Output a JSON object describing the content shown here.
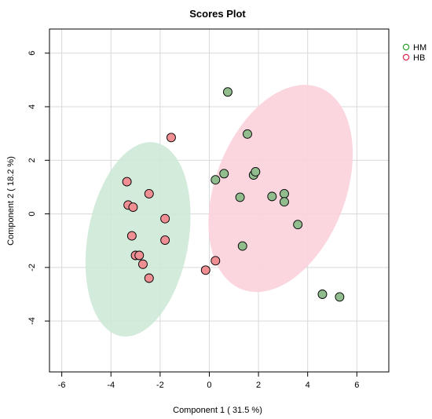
{
  "chart_data": {
    "type": "scatter",
    "title": "Scores Plot",
    "xlabel": "Component 1 ( 31.5 %)",
    "ylabel": "Component 2 ( 18.2 %)",
    "xlim": [
      -6.5,
      7.3
    ],
    "ylim": [
      -5.9,
      6.9
    ],
    "xticks": [
      -6,
      -4,
      -2,
      0,
      2,
      4,
      6
    ],
    "yticks": [
      -4,
      -2,
      0,
      2,
      4,
      6
    ],
    "grid": true,
    "legend_position": "top-right",
    "series": [
      {
        "name": "HM",
        "color": "#2ca02c",
        "point_fill": "#90bc8e",
        "ellipse_fill": "#cde9d6",
        "ellipse": {
          "center": [
            -2.9,
            -0.95
          ],
          "semi_axes": [
            4.0,
            2.05
          ],
          "angle_deg": 80
        },
        "points": [
          [
            0.75,
            4.55
          ],
          [
            1.55,
            2.98
          ],
          [
            0.6,
            1.5
          ],
          [
            0.25,
            1.27
          ],
          [
            1.8,
            1.45
          ],
          [
            1.88,
            1.57
          ],
          [
            1.25,
            0.62
          ],
          [
            2.55,
            0.65
          ],
          [
            3.05,
            0.75
          ],
          [
            3.05,
            0.45
          ],
          [
            3.6,
            -0.4
          ],
          [
            1.35,
            -1.2
          ],
          [
            4.6,
            -3.0
          ],
          [
            5.3,
            -3.1
          ]
        ]
      },
      {
        "name": "HB",
        "color": "#dc2850",
        "point_fill": "#ef8e93",
        "ellipse_fill": "#fbd1db",
        "ellipse": {
          "center": [
            2.9,
            0.95
          ],
          "semi_axes": [
            4.4,
            2.65
          ],
          "angle_deg": 69
        },
        "points": [
          [
            -1.55,
            2.85
          ],
          [
            -3.35,
            1.2
          ],
          [
            -2.45,
            0.75
          ],
          [
            -3.3,
            0.33
          ],
          [
            -3.1,
            0.25
          ],
          [
            -1.8,
            -0.18
          ],
          [
            -3.15,
            -0.82
          ],
          [
            -1.8,
            -0.98
          ],
          [
            -3.0,
            -1.55
          ],
          [
            -2.85,
            -1.55
          ],
          [
            -2.7,
            -1.88
          ],
          [
            0.25,
            -1.75
          ],
          [
            -0.15,
            -2.1
          ],
          [
            -2.45,
            -2.4
          ]
        ]
      }
    ]
  }
}
